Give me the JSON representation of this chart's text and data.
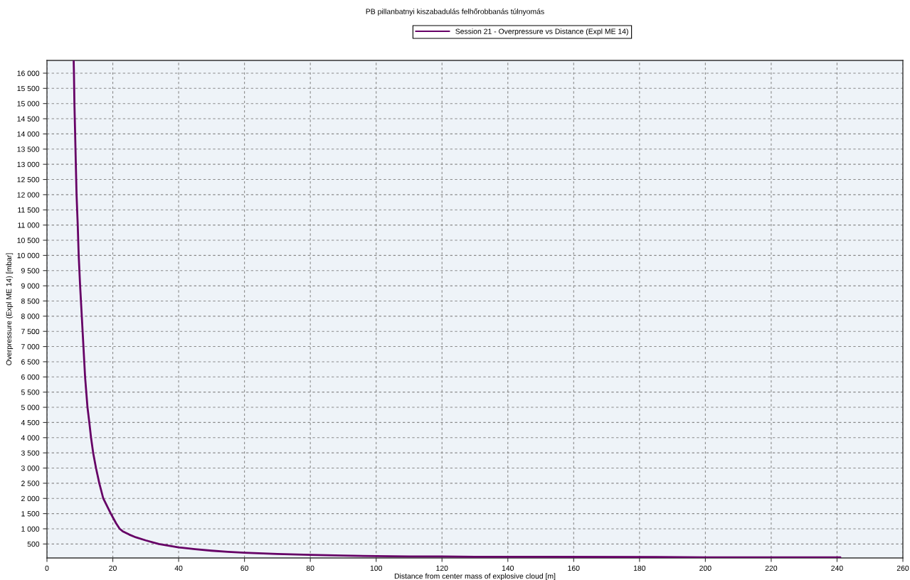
{
  "chart_data": {
    "type": "line",
    "title": "PB pillanbatnyi kiszabadulás felhőrobbanás túlnyomás",
    "xlabel": "Distance from center mass of explosive cloud [m]",
    "ylabel": "Overpressure (Expl ME 14) [mbar]",
    "series": [
      {
        "name": "Session 21 - Overpressure vs Distance (Expl ME 14)",
        "color": "#660066",
        "x": [
          8.12,
          8.2,
          8.34,
          8.56,
          8.77,
          8.99,
          9.35,
          9.64,
          10.07,
          10.58,
          11.08,
          11.58,
          12.31,
          12.87,
          13.39,
          14.04,
          14.9,
          15.9,
          17.1,
          19.4,
          20,
          21,
          22.1,
          23,
          25,
          27,
          30,
          34,
          40,
          45,
          50,
          55,
          60,
          70,
          80,
          90,
          100,
          110,
          120,
          130,
          150,
          185,
          200,
          241
        ],
        "values": [
          16400,
          16000,
          15000,
          14000,
          13000,
          12000,
          11000,
          10000,
          9000,
          8000,
          7000,
          6000,
          5000,
          4500,
          4000,
          3500,
          3000,
          2500,
          2000,
          1500,
          1380,
          1180,
          1000,
          920,
          810,
          720,
          620,
          500,
          390,
          330,
          280,
          240,
          210,
          170,
          140,
          120,
          100,
          90,
          90,
          80,
          80,
          70,
          60,
          60
        ]
      }
    ],
    "xlim": [
      0,
      260
    ],
    "xticks": [
      0,
      20,
      40,
      60,
      80,
      100,
      120,
      140,
      160,
      180,
      200,
      220,
      240,
      260
    ],
    "ylim": [
      40,
      16420
    ],
    "yticks": [
      500,
      {
        "value": 1000,
        "label": "1 000"
      },
      {
        "value": 1500,
        "label": "1 500"
      },
      {
        "value": 2000,
        "label": "2 000"
      },
      {
        "value": 2500,
        "label": "2 500"
      },
      {
        "value": 3000,
        "label": "3 000"
      },
      {
        "value": 3500,
        "label": "3 500"
      },
      {
        "value": 4000,
        "label": "4 000"
      },
      {
        "value": 4500,
        "label": "4 500"
      },
      {
        "value": 5000,
        "label": "5 000"
      },
      {
        "value": 5500,
        "label": "5 500"
      },
      {
        "value": 6000,
        "label": "6 000"
      },
      {
        "value": 6500,
        "label": "6 500"
      },
      {
        "value": 7000,
        "label": "7 000"
      },
      {
        "value": 7500,
        "label": "7 500"
      },
      {
        "value": 8000,
        "label": "8 000"
      },
      {
        "value": 8500,
        "label": "8 500"
      },
      {
        "value": 9000,
        "label": "9 000"
      },
      {
        "value": 9500,
        "label": "9 500"
      },
      {
        "value": 10000,
        "label": "10 000"
      },
      {
        "value": 10500,
        "label": "10 500"
      },
      {
        "value": 11000,
        "label": "11 000"
      },
      {
        "value": 11500,
        "label": "11 500"
      },
      {
        "value": 12000,
        "label": "12 000"
      },
      {
        "value": 12500,
        "label": "12 500"
      },
      {
        "value": 13000,
        "label": "13 000"
      },
      {
        "value": 13500,
        "label": "13 500"
      },
      {
        "value": 14000,
        "label": "14 000"
      },
      {
        "value": 14500,
        "label": "14 500"
      },
      {
        "value": 15000,
        "label": "15 000"
      },
      {
        "value": 15500,
        "label": "15 500"
      },
      {
        "value": 16000,
        "label": "16 000"
      }
    ],
    "grid": true,
    "legend": "top",
    "marker": "none",
    "line_style": "solid"
  }
}
